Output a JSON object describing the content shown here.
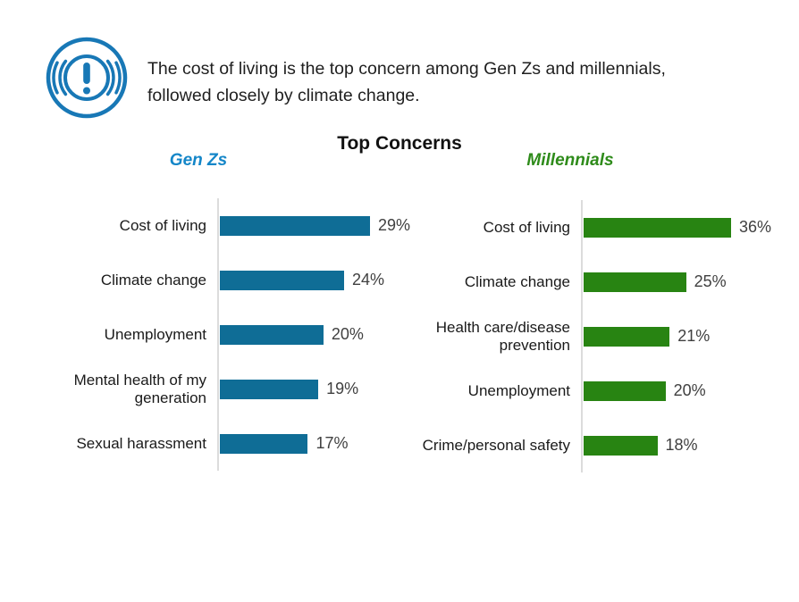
{
  "header": {
    "icon_name": "alert-circle-icon",
    "text": "The cost of living is the top concern among Gen Zs and millennials, followed closely by climate change."
  },
  "chart_title": "Top Concerns",
  "colors": {
    "icon_blue": "#1878B6",
    "axis_line": "#DCDCDC",
    "body_text": "#1F1F1F",
    "value_label_gray": "#404040",
    "genz_blue": "#0F6D96",
    "genz_title_blue": "#1486C8",
    "millennial_green": "#288412",
    "millennial_title_green": "#2E8B1A"
  },
  "chart_data": [
    {
      "type": "bar",
      "orientation": "horizontal",
      "group_label": "Gen Zs",
      "title_color": "#1486C8",
      "bar_color": "#0F6D96",
      "categories": [
        "Cost of living",
        "Climate change",
        "Unemployment",
        "Mental health of my generation",
        "Sexual harassment"
      ],
      "values": [
        29,
        24,
        20,
        19,
        17
      ],
      "value_labels": [
        "29%",
        "24%",
        "20%",
        "19%",
        "17%"
      ],
      "xlim": [
        0,
        36
      ],
      "grid": false,
      "legend": "none"
    },
    {
      "type": "bar",
      "orientation": "horizontal",
      "group_label": "Millennials",
      "title_color": "#2E8B1A",
      "bar_color": "#288412",
      "categories": [
        "Cost of living",
        "Climate change",
        "Health care/disease prevention",
        "Unemployment",
        "Crime/personal safety"
      ],
      "values": [
        36,
        25,
        21,
        20,
        18
      ],
      "value_labels": [
        "36%",
        "25%",
        "21%",
        "20%",
        "18%"
      ],
      "xlim": [
        0,
        40
      ],
      "grid": false,
      "legend": "none"
    }
  ]
}
